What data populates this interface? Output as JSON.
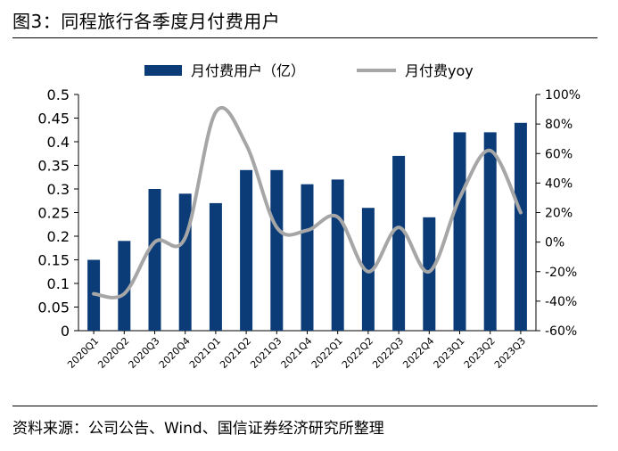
{
  "figure": {
    "title": "图3：同程旅行各季度月付费用户",
    "source": "资料来源：公司公告、Wind、国信证券经济研究所整理"
  },
  "chart_data": {
    "type": "bar",
    "categories": [
      "2020Q1",
      "2020Q2",
      "2020Q3",
      "2020Q4",
      "2021Q1",
      "2021Q2",
      "2021Q3",
      "2021Q4",
      "2022Q1",
      "2022Q2",
      "2022Q3",
      "2022Q4",
      "2023Q1",
      "2023Q2",
      "2023Q3"
    ],
    "series": [
      {
        "name": "月付费用户（亿）",
        "type": "bar",
        "axis": "left",
        "color": "#0b3c78",
        "values": [
          0.15,
          0.19,
          0.3,
          0.29,
          0.27,
          0.34,
          0.34,
          0.31,
          0.32,
          0.26,
          0.37,
          0.24,
          0.42,
          0.42,
          0.44
        ]
      },
      {
        "name": "月付费yoy",
        "type": "line",
        "axis": "right",
        "color": "#a6a6a6",
        "values": [
          -35,
          -35,
          0,
          3,
          88,
          66,
          10,
          8,
          17,
          -20,
          10,
          -20,
          30,
          62,
          20
        ]
      }
    ],
    "y_left": {
      "min": 0,
      "max": 0.5,
      "ticks": [
        "0",
        "0.05",
        "0.1",
        "0.15",
        "0.2",
        "0.25",
        "0.3",
        "0.35",
        "0.4",
        "0.45",
        "0.5"
      ]
    },
    "y_right": {
      "min": -60,
      "max": 100,
      "unit": "%",
      "ticks": [
        "-60%",
        "-40%",
        "-20%",
        "0%",
        "20%",
        "40%",
        "60%",
        "80%",
        "100%"
      ]
    },
    "grid": false,
    "legend_position": "top-center"
  }
}
